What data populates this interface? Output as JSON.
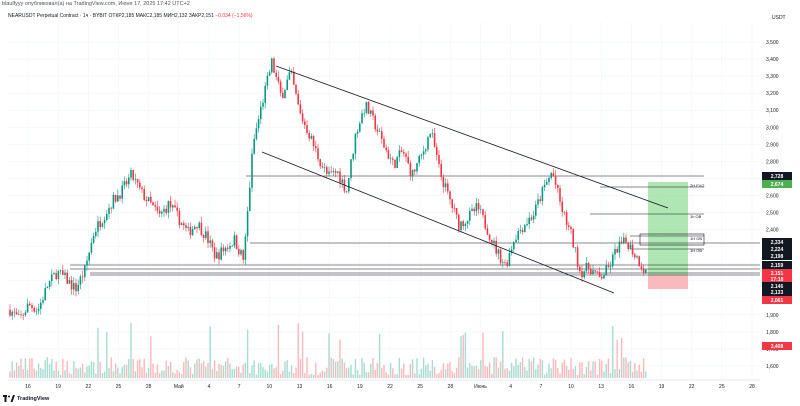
{
  "header": {
    "line": "blaulfyyy опубликовал(а) на TradingView.com, Июня 17, 2025 17:42 UTC+2"
  },
  "symbol_bar": {
    "title": "NEARUSDT Perpetual Contract · 1ч · BYBIT",
    "ohlc": "OТКР2,185  МАКС2,185  МИН2,132  ЗАКР2,151",
    "change": "−0,034 (−1,56%)"
  },
  "price_axis": {
    "currency": "USDT",
    "ticks": [
      "3,500",
      "3,400",
      "3,300",
      "3,200",
      "3,100",
      "3,000",
      "2,900",
      "2,800",
      "2,700",
      "2,600",
      "2,500",
      "2,400",
      "2,300",
      "2,200",
      "2,100",
      "2,000",
      "1,900",
      "1,800",
      "1,700",
      "1,600"
    ]
  },
  "price_badges": [
    {
      "text": "2,728",
      "bg": "#131722",
      "color": "#ffffff"
    },
    {
      "text": "2,674",
      "bg": "#4caf50",
      "color": "#ffffff"
    },
    {
      "text": "2,334",
      "bg": "#131722",
      "color": "#ffffff"
    },
    {
      "text": "2,224",
      "bg": "#131722",
      "color": "#ffffff"
    },
    {
      "text": "2,198",
      "bg": "#131722",
      "color": "#ffffff"
    },
    {
      "text": "2,159",
      "bg": "#131722",
      "color": "#ffffff"
    },
    {
      "text": "2,151",
      "bg": "#f23645",
      "color": "#ffffff"
    },
    {
      "text": "17:18",
      "bg": "#f23645",
      "color": "#ffffff"
    },
    {
      "text": "2,146",
      "bg": "#131722",
      "color": "#ffffff"
    },
    {
      "text": "2,133",
      "bg": "#131722",
      "color": "#ffffff"
    },
    {
      "text": "2,061",
      "bg": "#f23645",
      "color": "#ffffff"
    },
    {
      "text": "3,408",
      "bg": "#f23645",
      "color": "#ffffff"
    }
  ],
  "level_tags": [
    "2H FVG",
    "1h OB",
    "1H OB",
    "1H OB"
  ],
  "time_axis": {
    "ticks": [
      "16",
      "19",
      "22",
      "25",
      "28",
      "Май",
      "4",
      "7",
      "10",
      "13",
      "16",
      "19",
      "22",
      "25",
      "28",
      "Июнь",
      "4",
      "7",
      "10",
      "13",
      "16",
      "19",
      "22",
      "25",
      "28"
    ]
  },
  "footer": {
    "brand": "TradingView"
  },
  "colors": {
    "up": "#089981",
    "down": "#f23645",
    "line": "#131722",
    "target_zone": "#9be0a0",
    "stop_zone": "#f7a9af"
  },
  "icons": [
    "tradingview-logo-icon"
  ],
  "chart_data": {
    "type": "candlestick",
    "instrument": "NEARUSDT",
    "ylim": [
      1.55,
      3.57
    ],
    "horizontal_levels": [
      2.728,
      2.674,
      2.334,
      2.224,
      2.198,
      2.159,
      2.146,
      2.133
    ],
    "price_path": [
      [
        1.93,
        1.87,
        1.96,
        1.93,
        2.07,
        2.15,
        2.11,
        2.05,
        2.16,
        2.39,
        2.48,
        2.57,
        2.63,
        2.72,
        2.62,
        2.55,
        2.48,
        2.55,
        2.47,
        2.38,
        2.44,
        2.36,
        2.24,
        2.29,
        2.34,
        2.22,
        2.9,
        3.15,
        3.38,
        3.18,
        3.32,
        3.08,
        2.96,
        2.82,
        2.71,
        2.74,
        2.63,
        2.97,
        3.13,
        3.02,
        2.89,
        2.78,
        2.86,
        2.72,
        2.83,
        2.98,
        2.73,
        2.58,
        2.43,
        2.47,
        2.53,
        2.41,
        2.28,
        2.19,
        2.36,
        2.43,
        2.49,
        2.63,
        2.74,
        2.52,
        2.37,
        2.15,
        2.18,
        2.11,
        2.17,
        2.3,
        2.33,
        2.24,
        2.15
      ]
    ]
  }
}
